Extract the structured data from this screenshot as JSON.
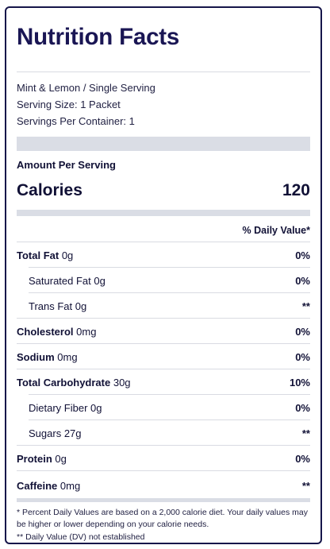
{
  "title": "Nutrition Facts",
  "product": "Mint & Lemon / Single Serving",
  "serving_size": "Serving Size: 1 Packet",
  "servings_per_container": "Servings Per Container: 1",
  "amount_per_serving": "Amount Per Serving",
  "calories": {
    "label": "Calories",
    "value": "120"
  },
  "daily_value_header": "% Daily Value*",
  "nutrients": [
    {
      "name": "Total Fat",
      "amount": "0g",
      "dv": "0%"
    },
    {
      "name": "Saturated Fat",
      "amount": "0g",
      "dv": "0%"
    },
    {
      "name": "Trans Fat",
      "amount": "0g",
      "dv": "**"
    },
    {
      "name": "Cholesterol",
      "amount": "0mg",
      "dv": "0%"
    },
    {
      "name": "Sodium",
      "amount": "0mg",
      "dv": "0%"
    },
    {
      "name": "Total Carbohydrate",
      "amount": "30g",
      "dv": "10%"
    },
    {
      "name": "Dietary Fiber",
      "amount": "0g",
      "dv": "0%"
    },
    {
      "name": "Sugars",
      "amount": "27g",
      "dv": "**"
    },
    {
      "name": "Protein",
      "amount": "0g",
      "dv": "0%"
    },
    {
      "name": "Caffeine",
      "amount": "0mg",
      "dv": "**"
    }
  ],
  "footnotes": {
    "percent_dv": "* Percent Daily Values are based on a 2,000 calorie diet. Your daily values may be higher or lower depending on your calorie needs.",
    "dv_not_established": "** Daily Value (DV) not established"
  }
}
